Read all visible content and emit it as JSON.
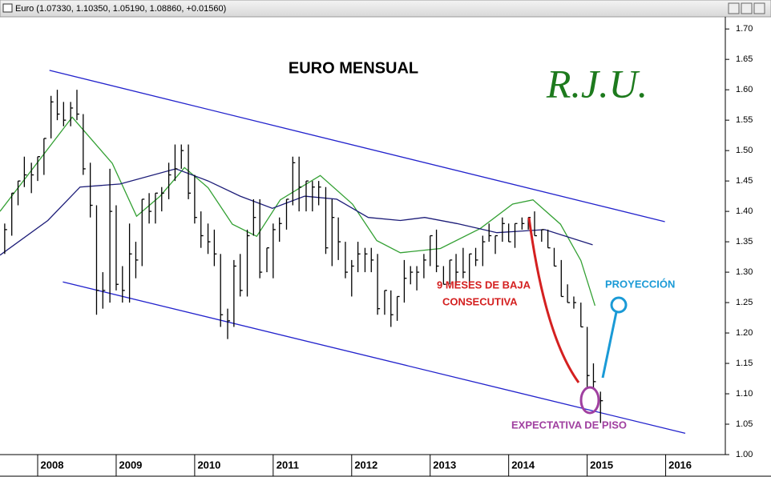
{
  "chart_data": {
    "type": "ohlc",
    "window_title": "Euro (1.07330, 1.10350, 1.05190, 1.08860, +0.01560)",
    "title": "EURO MENSUAL",
    "watermark": "R.J.U.",
    "annotations": [
      "9 MESES DE BAJA",
      "CONSECUTIVA",
      "PROYECCIÓN",
      "EXPECTATIVA DE PISO"
    ],
    "color": "#000000",
    "xlim": [
      2007.52,
      2016.76
    ],
    "xticks": [
      2008,
      2009,
      2010,
      2011,
      2012,
      2013,
      2014,
      2015,
      2016
    ],
    "ylim": [
      1.0,
      1.72
    ],
    "yticks": [
      {
        "value": 1.0,
        "label": "1.00"
      },
      1.05,
      {
        "value": 1.1,
        "label": "1.10"
      },
      1.15,
      {
        "value": 1.2,
        "label": "1.20"
      },
      1.25,
      {
        "value": 1.3,
        "label": "1.30"
      },
      1.35,
      {
        "value": 1.4,
        "label": "1.40"
      },
      1.45,
      {
        "value": 1.5,
        "label": "1.50"
      },
      1.55,
      {
        "value": 1.6,
        "label": "1.60"
      },
      1.65,
      {
        "value": 1.7,
        "label": "1.70"
      }
    ],
    "x": [
      2007.58,
      2007.67,
      2007.75,
      2007.83,
      2007.92,
      2008.0,
      2008.08,
      2008.17,
      2008.25,
      2008.33,
      2008.42,
      2008.5,
      2008.58,
      2008.67,
      2008.75,
      2008.83,
      2008.92,
      2009.0,
      2009.08,
      2009.17,
      2009.25,
      2009.33,
      2009.42,
      2009.5,
      2009.58,
      2009.67,
      2009.75,
      2009.83,
      2009.92,
      2010.0,
      2010.08,
      2010.17,
      2010.25,
      2010.33,
      2010.42,
      2010.5,
      2010.58,
      2010.67,
      2010.75,
      2010.83,
      2010.92,
      2011.0,
      2011.08,
      2011.17,
      2011.25,
      2011.33,
      2011.42,
      2011.5,
      2011.58,
      2011.67,
      2011.75,
      2011.83,
      2011.92,
      2012.0,
      2012.08,
      2012.17,
      2012.25,
      2012.33,
      2012.42,
      2012.5,
      2012.58,
      2012.67,
      2012.75,
      2012.83,
      2012.92,
      2013.0,
      2013.08,
      2013.17,
      2013.25,
      2013.33,
      2013.42,
      2013.5,
      2013.58,
      2013.67,
      2013.75,
      2013.83,
      2013.92,
      2014.0,
      2014.08,
      2014.17,
      2014.25,
      2014.33,
      2014.42,
      2014.5,
      2014.58,
      2014.67,
      2014.75,
      2014.83,
      2014.92,
      2015.0,
      2015.08,
      2015.17
    ],
    "high": [
      1.38,
      1.43,
      1.45,
      1.49,
      1.48,
      1.49,
      1.52,
      1.59,
      1.6,
      1.58,
      1.58,
      1.6,
      1.56,
      1.48,
      1.41,
      1.3,
      1.47,
      1.41,
      1.31,
      1.38,
      1.35,
      1.42,
      1.43,
      1.43,
      1.44,
      1.48,
      1.51,
      1.51,
      1.51,
      1.46,
      1.4,
      1.38,
      1.37,
      1.33,
      1.24,
      1.32,
      1.33,
      1.37,
      1.42,
      1.42,
      1.34,
      1.38,
      1.39,
      1.42,
      1.49,
      1.49,
      1.45,
      1.45,
      1.45,
      1.44,
      1.42,
      1.39,
      1.35,
      1.32,
      1.35,
      1.34,
      1.34,
      1.33,
      1.27,
      1.27,
      1.26,
      1.32,
      1.31,
      1.31,
      1.33,
      1.36,
      1.37,
      1.31,
      1.32,
      1.33,
      1.34,
      1.33,
      1.34,
      1.36,
      1.38,
      1.36,
      1.39,
      1.38,
      1.38,
      1.39,
      1.39,
      1.4,
      1.37,
      1.37,
      1.34,
      1.32,
      1.28,
      1.26,
      1.25,
      1.21,
      1.15,
      1.1035
    ],
    "low": [
      1.33,
      1.36,
      1.41,
      1.44,
      1.43,
      1.45,
      1.46,
      1.52,
      1.55,
      1.54,
      1.54,
      1.55,
      1.46,
      1.39,
      1.23,
      1.24,
      1.25,
      1.27,
      1.25,
      1.25,
      1.29,
      1.31,
      1.38,
      1.38,
      1.4,
      1.42,
      1.45,
      1.47,
      1.42,
      1.38,
      1.34,
      1.33,
      1.31,
      1.21,
      1.19,
      1.21,
      1.26,
      1.26,
      1.36,
      1.29,
      1.3,
      1.29,
      1.35,
      1.37,
      1.41,
      1.4,
      1.4,
      1.4,
      1.41,
      1.33,
      1.31,
      1.32,
      1.29,
      1.26,
      1.3,
      1.3,
      1.3,
      1.23,
      1.23,
      1.21,
      1.22,
      1.25,
      1.28,
      1.27,
      1.29,
      1.31,
      1.3,
      1.28,
      1.28,
      1.28,
      1.29,
      1.28,
      1.31,
      1.31,
      1.35,
      1.33,
      1.35,
      1.35,
      1.34,
      1.37,
      1.37,
      1.36,
      1.35,
      1.34,
      1.31,
      1.26,
      1.25,
      1.24,
      1.21,
      1.11,
      1.11,
      1.0519
    ],
    "close": [
      1.37,
      1.43,
      1.45,
      1.46,
      1.46,
      1.49,
      1.52,
      1.58,
      1.56,
      1.55,
      1.57,
      1.56,
      1.47,
      1.41,
      1.27,
      1.27,
      1.4,
      1.28,
      1.27,
      1.33,
      1.32,
      1.42,
      1.4,
      1.43,
      1.43,
      1.46,
      1.47,
      1.5,
      1.43,
      1.39,
      1.36,
      1.35,
      1.33,
      1.23,
      1.22,
      1.31,
      1.27,
      1.36,
      1.39,
      1.3,
      1.34,
      1.37,
      1.38,
      1.42,
      1.48,
      1.44,
      1.45,
      1.44,
      1.44,
      1.34,
      1.39,
      1.35,
      1.3,
      1.31,
      1.33,
      1.33,
      1.32,
      1.24,
      1.27,
      1.23,
      1.26,
      1.29,
      1.3,
      1.3,
      1.32,
      1.36,
      1.31,
      1.28,
      1.32,
      1.3,
      1.3,
      1.33,
      1.32,
      1.35,
      1.36,
      1.36,
      1.38,
      1.35,
      1.38,
      1.38,
      1.39,
      1.36,
      1.37,
      1.34,
      1.31,
      1.26,
      1.25,
      1.25,
      1.21,
      1.13,
      1.12,
      1.0886
    ],
    "lines": [
      {
        "color": "#33a033",
        "x": [
          2007.52,
          2008.44,
          2008.95,
          2009.26,
          2009.56,
          2009.87,
          2010.17,
          2010.48,
          2010.79,
          2011.09,
          2011.6,
          2012.01,
          2012.32,
          2012.62,
          2013.13,
          2013.64,
          2014.05,
          2014.31,
          2014.66,
          2014.92,
          2015.1
        ],
        "values": [
          1.4,
          1.555,
          1.479,
          1.392,
          1.425,
          1.472,
          1.439,
          1.379,
          1.359,
          1.419,
          1.459,
          1.412,
          1.352,
          1.332,
          1.339,
          1.372,
          1.412,
          1.419,
          1.379,
          1.319,
          1.245
        ]
      },
      {
        "color": "#1c1c78",
        "x": [
          2007.52,
          2008.13,
          2008.54,
          2009.05,
          2009.76,
          2010.17,
          2010.58,
          2010.99,
          2011.4,
          2011.81,
          2012.21,
          2012.62,
          2012.93,
          2013.34,
          2013.85,
          2014.46,
          2015.07
        ],
        "values": [
          1.328,
          1.385,
          1.44,
          1.445,
          1.47,
          1.45,
          1.425,
          1.405,
          1.425,
          1.42,
          1.39,
          1.385,
          1.39,
          1.38,
          1.365,
          1.37,
          1.345
        ]
      }
    ],
    "channels": [
      {
        "color": "#2222cc",
        "x": [
          2008.15,
          2015.99
        ],
        "values": [
          1.632,
          1.383
        ]
      },
      {
        "color": "#2222cc",
        "x": [
          2008.32,
          2016.25
        ],
        "values": [
          1.284,
          1.035
        ]
      }
    ]
  }
}
